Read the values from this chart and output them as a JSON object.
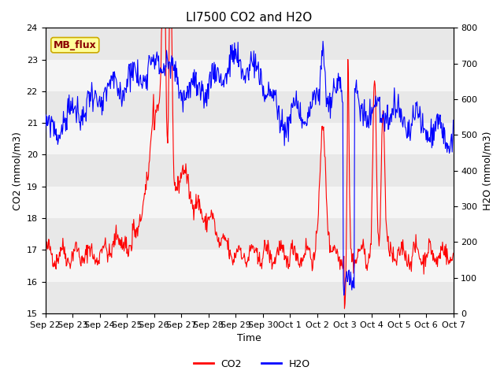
{
  "title": "LI7500 CO2 and H2O",
  "xlabel": "Time",
  "ylabel_left": "CO2 (mmol/m3)",
  "ylabel_right": "H2O (mmol/m3)",
  "ylim_left": [
    15.0,
    24.0
  ],
  "ylim_right": [
    0,
    800
  ],
  "yticks_left": [
    15.0,
    16.0,
    17.0,
    18.0,
    19.0,
    20.0,
    21.0,
    22.0,
    23.0,
    24.0
  ],
  "yticks_right": [
    0,
    100,
    200,
    300,
    400,
    500,
    600,
    700,
    800
  ],
  "annotation_text": "MB_flux",
  "co2_color": "red",
  "h2o_color": "blue",
  "background_color": "#ffffff",
  "strip_colors_even": "#e8e8e8",
  "strip_colors_odd": "#f5f5f5",
  "legend_co2": "CO2",
  "legend_h2o": "H2O",
  "title_fontsize": 11,
  "axis_fontsize": 9,
  "tick_fontsize": 8,
  "legend_fontsize": 9,
  "annotation_fontsize": 9,
  "linewidth": 0.8
}
